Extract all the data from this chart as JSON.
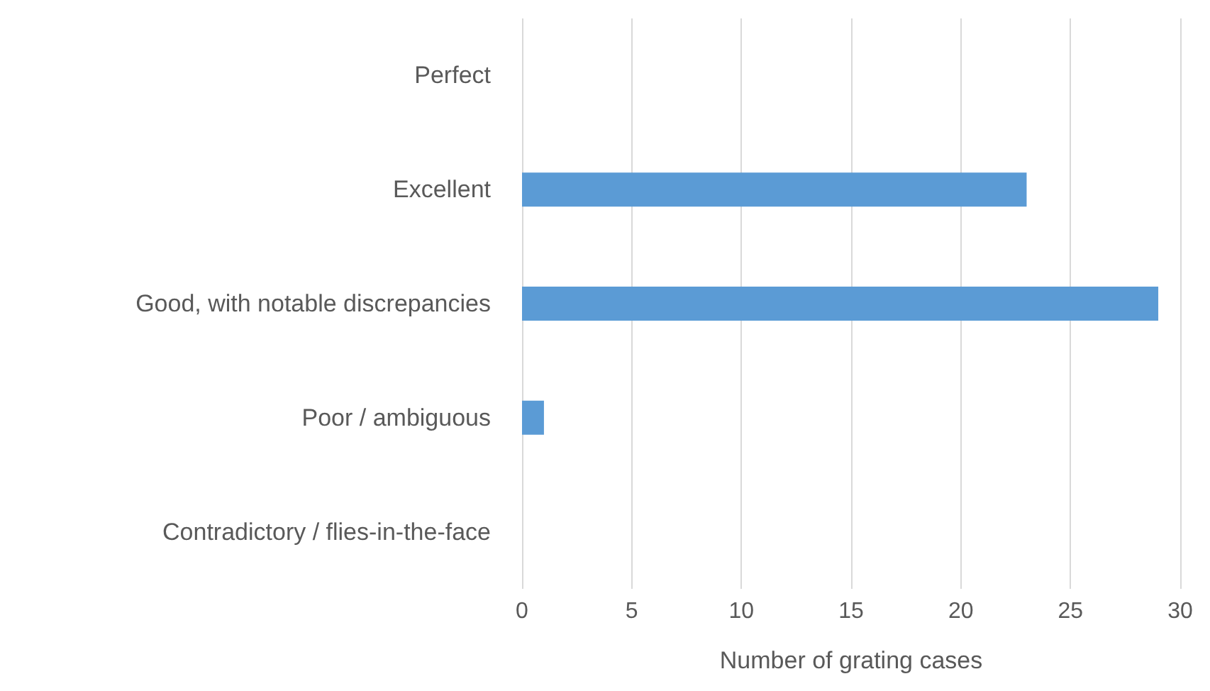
{
  "chart_data": {
    "type": "bar",
    "orientation": "horizontal",
    "xlabel": "Number of grating cases",
    "categories": [
      "Perfect",
      "Excellent",
      "Good, with notable discrepancies",
      "Poor / ambiguous",
      "Contradictory / flies-in-the-face"
    ],
    "values": [
      0,
      23,
      29,
      1,
      0
    ],
    "color": "#5b9bd5",
    "xlim": [
      0,
      30
    ],
    "xticks": [
      0,
      5,
      10,
      15,
      20,
      25,
      30
    ],
    "grid": "x"
  }
}
